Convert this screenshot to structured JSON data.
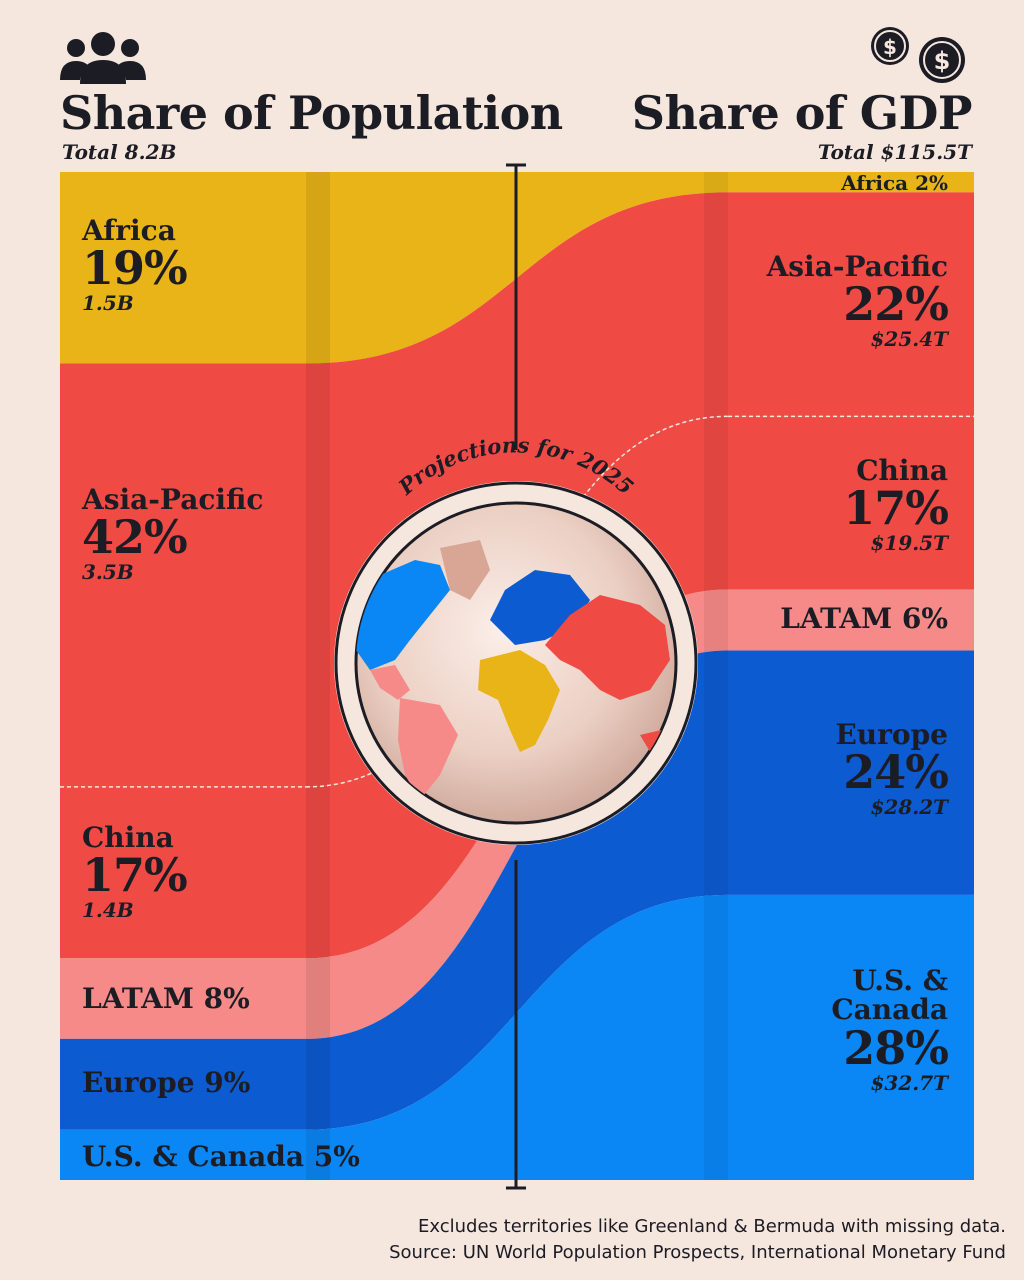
{
  "population": {
    "title": "Share of Population",
    "total": "Total 8.2B",
    "icon": "people-icon"
  },
  "gdp": {
    "title": "Share of GDP",
    "total": "Total $115.5T",
    "icon": "coins-icon"
  },
  "center_label": "Projections for 2025",
  "colors": {
    "background": "#f5e6de",
    "africa": "#e8b418",
    "asia_pacific": "#f04a45",
    "china": "#f04a45",
    "latam": "#f58a88",
    "europe": "#0d5bd1",
    "us_canada": "#0a86f5"
  },
  "chart_data": {
    "type": "sankey",
    "title_left": "Share of Population",
    "title_right": "Share of GDP",
    "left_total": "Total 8.2B",
    "right_total": "Total $115.5T",
    "regions": [
      {
        "key": "africa",
        "name": "Africa",
        "pop_pct": 19,
        "pop_label": "19%",
        "pop_value": "1.5B",
        "gdp_pct": 2,
        "gdp_label": "2%",
        "gdp_value": ""
      },
      {
        "key": "asia_pacific",
        "name": "Asia-Pacific",
        "pop_pct": 42,
        "pop_label": "42%",
        "pop_value": "3.5B",
        "gdp_pct": 22,
        "gdp_label": "22%",
        "gdp_value": "$25.4T"
      },
      {
        "key": "china",
        "name": "China",
        "pop_pct": 17,
        "pop_label": "17%",
        "pop_value": "1.4B",
        "gdp_pct": 17,
        "gdp_label": "17%",
        "gdp_value": "$19.5T"
      },
      {
        "key": "latam",
        "name": "LATAM",
        "pop_pct": 8,
        "pop_label": "8%",
        "pop_value": "",
        "gdp_pct": 6,
        "gdp_label": "6%",
        "gdp_value": ""
      },
      {
        "key": "europe",
        "name": "Europe",
        "pop_pct": 9,
        "pop_label": "9%",
        "pop_value": "",
        "gdp_pct": 24,
        "gdp_label": "24%",
        "gdp_value": "$28.2T"
      },
      {
        "key": "us_canada",
        "name": "U.S. & Canada",
        "pop_pct": 5,
        "pop_label": "5%",
        "pop_value": "",
        "gdp_pct": 28,
        "gdp_label": "28%",
        "gdp_value": "$32.7T"
      }
    ],
    "labels": {
      "pop_africa_name": "Africa",
      "pop_africa_pct": "19%",
      "pop_africa_val": "1.5B",
      "pop_asia_name": "Asia-Pacific",
      "pop_asia_pct": "42%",
      "pop_asia_val": "3.5B",
      "pop_china_name": "China",
      "pop_china_pct": "17%",
      "pop_china_val": "1.4B",
      "pop_latam": "LATAM 8%",
      "pop_europe": "Europe 9%",
      "pop_us_name": "U.S. & Canada",
      "pop_us_pct": "5%",
      "gdp_africa": "Africa 2%",
      "gdp_asia_name": "Asia-Pacific",
      "gdp_asia_pct": "22%",
      "gdp_asia_val": "$25.4T",
      "gdp_china_name": "China",
      "gdp_china_pct": "17%",
      "gdp_china_val": "$19.5T",
      "gdp_latam": "LATAM 6%",
      "gdp_europe_name": "Europe",
      "gdp_europe_pct": "24%",
      "gdp_europe_val": "$28.2T",
      "gdp_us_name1": "U.S. &",
      "gdp_us_name2": "Canada",
      "gdp_us_pct": "28%",
      "gdp_us_val": "$32.7T"
    }
  },
  "footer": {
    "note": "Excludes territories like Greenland & Bermuda with missing data.",
    "source": "Source: UN World Population Prospects, International Monetary Fund"
  }
}
